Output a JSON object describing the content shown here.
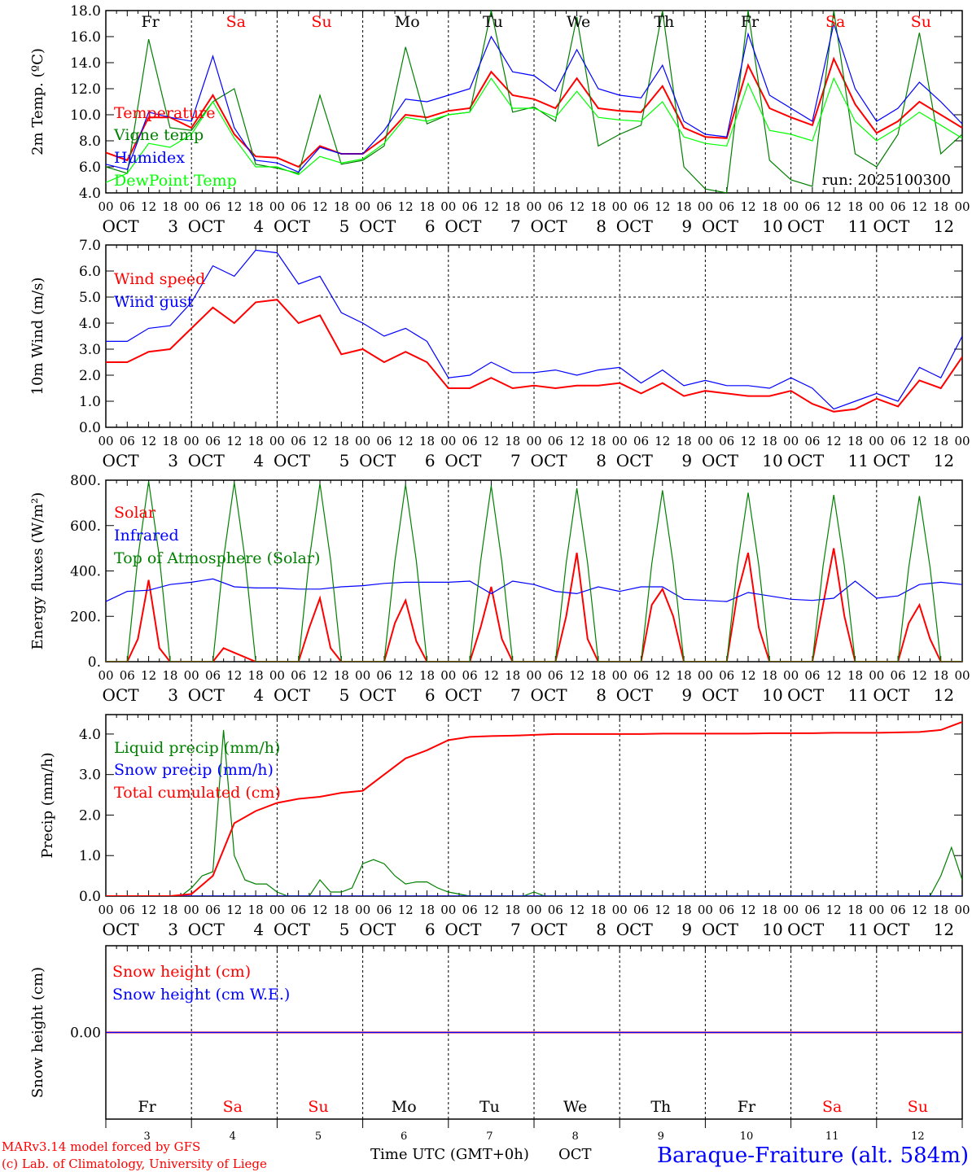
{
  "title": "Baraque-Fraiture (alt. 584m)",
  "footer": {
    "credit_line1": "MARv3.14 model forced by GFS",
    "credit_line2": "(c) Lab. of Climatology, University of Liege",
    "time_label": "Time UTC (GMT+0h)",
    "month_label": "OCT"
  },
  "run_label": "run: 2025100300",
  "xaxis": {
    "hour_labels": [
      "00",
      "06",
      "12",
      "18"
    ],
    "month": "OCT",
    "days": [
      "3",
      "4",
      "5",
      "6",
      "7",
      "8",
      "9",
      "10",
      "11",
      "12"
    ],
    "weekdays": [
      {
        "label": "Fr",
        "color": "#000000"
      },
      {
        "label": "Sa",
        "color": "#ff0000"
      },
      {
        "label": "Su",
        "color": "#ff0000"
      },
      {
        "label": "Mo",
        "color": "#000000"
      },
      {
        "label": "Tu",
        "color": "#000000"
      },
      {
        "label": "We",
        "color": "#000000"
      },
      {
        "label": "Th",
        "color": "#000000"
      },
      {
        "label": "Fr",
        "color": "#000000"
      },
      {
        "label": "Sa",
        "color": "#ff0000"
      },
      {
        "label": "Su",
        "color": "#ff0000"
      }
    ]
  },
  "chart_data": [
    {
      "type": "line",
      "ylabel": "2m Temp. (ºC)",
      "ylim": [
        4,
        18
      ],
      "yticks": [
        "4.0",
        "6.0",
        "8.0",
        "10.0",
        "12.0",
        "14.0",
        "16.0",
        "18.0"
      ],
      "x_step_hours": 6,
      "series": [
        {
          "name": "Temperature",
          "color": "#ff0000",
          "values": [
            7.1,
            6.5,
            9.8,
            9.8,
            9.0,
            11.5,
            8.5,
            6.8,
            6.7,
            6.0,
            7.6,
            7.0,
            7.0,
            8.2,
            10.0,
            9.8,
            10.3,
            10.5,
            13.3,
            11.5,
            11.2,
            10.5,
            12.8,
            10.5,
            10.3,
            10.2,
            12.2,
            9.0,
            8.3,
            8.2,
            13.8,
            10.5,
            9.8,
            9.2,
            14.3,
            10.8,
            8.6,
            9.5,
            11.0,
            10.0,
            9.0
          ]
        },
        {
          "name": "Vigne temp",
          "color": "#008000",
          "values": [
            6.0,
            5.5,
            15.8,
            9.0,
            8.8,
            11.0,
            12.0,
            6.2,
            5.9,
            5.5,
            11.5,
            6.2,
            6.5,
            7.6,
            15.2,
            9.3,
            10.0,
            10.2,
            18.0,
            10.2,
            10.6,
            9.5,
            17.5,
            7.6,
            8.5,
            9.2,
            18.0,
            6.0,
            4.3,
            4.0,
            18.0,
            6.5,
            5.0,
            4.5,
            18.0,
            7.0,
            6.0,
            8.5,
            16.3,
            7.0,
            8.5
          ]
        },
        {
          "name": "Humidex",
          "color": "#0000ff",
          "values": [
            6.2,
            5.8,
            10.2,
            9.8,
            9.5,
            14.5,
            9.0,
            6.5,
            6.3,
            5.6,
            7.5,
            7.0,
            7.0,
            8.8,
            11.2,
            11.0,
            11.5,
            12.0,
            16.0,
            13.3,
            13.0,
            11.8,
            15.0,
            12.0,
            11.5,
            11.3,
            13.8,
            9.5,
            8.5,
            8.3,
            16.2,
            11.5,
            10.5,
            9.5,
            17.0,
            12.0,
            9.5,
            10.5,
            12.5,
            11.0,
            9.3
          ]
        },
        {
          "name": "DewPoint Temp",
          "color": "#00ff00",
          "values": [
            4.8,
            5.5,
            7.8,
            7.5,
            8.5,
            11.0,
            8.2,
            6.0,
            6.0,
            5.4,
            6.8,
            6.3,
            6.6,
            7.8,
            9.8,
            9.5,
            10.0,
            10.2,
            12.8,
            10.5,
            10.5,
            9.8,
            11.8,
            9.8,
            9.6,
            9.5,
            11.0,
            8.3,
            7.8,
            7.6,
            12.4,
            8.8,
            8.5,
            8.0,
            12.8,
            9.5,
            8.0,
            9.0,
            10.2,
            9.2,
            8.2
          ]
        }
      ]
    },
    {
      "type": "line",
      "ylabel": "10m Wind (m/s)",
      "ylim": [
        0,
        7
      ],
      "yticks": [
        "0.0",
        "1.0",
        "2.0",
        "3.0",
        "4.0",
        "5.0",
        "6.0",
        "7.0"
      ],
      "reference_line": 5.0,
      "x_step_hours": 6,
      "series": [
        {
          "name": "Wind speed",
          "color": "#ff0000",
          "values": [
            2.5,
            2.5,
            2.9,
            3.0,
            3.8,
            4.6,
            4.0,
            4.8,
            4.9,
            4.0,
            4.3,
            2.8,
            3.0,
            2.5,
            2.9,
            2.5,
            1.5,
            1.5,
            1.9,
            1.5,
            1.6,
            1.5,
            1.6,
            1.6,
            1.7,
            1.3,
            1.7,
            1.2,
            1.4,
            1.3,
            1.2,
            1.2,
            1.4,
            0.9,
            0.6,
            0.7,
            1.1,
            0.8,
            1.8,
            1.5,
            2.7
          ]
        },
        {
          "name": "Wind gust",
          "color": "#0000ff",
          "values": [
            3.3,
            3.3,
            3.8,
            3.9,
            4.8,
            6.2,
            5.8,
            6.8,
            6.7,
            5.5,
            5.8,
            4.4,
            4.0,
            3.5,
            3.8,
            3.3,
            1.9,
            2.0,
            2.5,
            2.1,
            2.1,
            2.2,
            2.0,
            2.2,
            2.3,
            1.7,
            2.2,
            1.6,
            1.8,
            1.6,
            1.6,
            1.5,
            1.9,
            1.5,
            0.7,
            1.0,
            1.3,
            1.0,
            2.3,
            1.9,
            3.5
          ]
        }
      ]
    },
    {
      "type": "line",
      "ylabel": "Energy fluxes (W/m²)",
      "ylim": [
        0,
        800
      ],
      "yticks": [
        "0.",
        "200.",
        "400.",
        "600.",
        "800."
      ],
      "series": [
        {
          "name": "Solar",
          "color": "#ff0000",
          "x_step_hours": 3,
          "values": [
            0,
            0,
            0,
            100,
            360,
            60,
            0,
            0,
            0,
            0,
            0,
            60,
            40,
            20,
            0,
            0,
            0,
            0,
            0,
            150,
            280,
            60,
            0,
            0,
            0,
            0,
            0,
            170,
            270,
            90,
            0,
            0,
            0,
            0,
            0,
            150,
            330,
            100,
            0,
            0,
            0,
            0,
            0,
            200,
            480,
            100,
            0,
            0,
            0,
            0,
            0,
            250,
            320,
            200,
            0,
            0,
            0,
            0,
            0,
            300,
            480,
            150,
            0,
            0,
            0,
            0,
            0,
            250,
            500,
            200,
            0,
            0,
            0,
            0,
            0,
            170,
            250,
            100,
            0,
            0,
            0
          ]
        },
        {
          "name": "Infrared",
          "color": "#0000ff",
          "x_step_hours": 6,
          "values": [
            265,
            310,
            315,
            340,
            350,
            365,
            330,
            325,
            325,
            320,
            320,
            330,
            335,
            345,
            350,
            350,
            350,
            355,
            300,
            355,
            340,
            310,
            300,
            330,
            310,
            330,
            330,
            275,
            270,
            265,
            305,
            290,
            275,
            270,
            280,
            355,
            280,
            290,
            340,
            350,
            340
          ]
        },
        {
          "name": "Top of Atmosphere (Solar)",
          "color": "#008000",
          "x_step_hours": 3,
          "values": [
            0,
            0,
            0,
            460,
            795,
            460,
            0,
            0,
            0,
            0,
            0,
            455,
            790,
            455,
            0,
            0,
            0,
            0,
            0,
            450,
            785,
            450,
            0,
            0,
            0,
            0,
            0,
            445,
            780,
            445,
            0,
            0,
            0,
            0,
            0,
            440,
            775,
            440,
            0,
            0,
            0,
            0,
            0,
            435,
            765,
            435,
            0,
            0,
            0,
            0,
            0,
            430,
            755,
            430,
            0,
            0,
            0,
            0,
            0,
            425,
            745,
            425,
            0,
            0,
            0,
            0,
            0,
            420,
            735,
            420,
            0,
            0,
            0,
            0,
            0,
            415,
            730,
            415,
            0,
            0,
            0
          ]
        }
      ]
    },
    {
      "type": "line",
      "ylabel": "Precip (mm/h)",
      "ylim": [
        0,
        4.48
      ],
      "yticks": [
        "0.0",
        "1.0",
        "2.0",
        "3.0",
        "4.0"
      ],
      "series": [
        {
          "name": "Liquid precip (mm/h)",
          "color": "#008000",
          "x_step_hours": 3,
          "values": [
            0,
            0,
            0,
            0,
            0,
            0,
            0,
            0,
            0.2,
            0.5,
            0.6,
            4.1,
            1.0,
            0.4,
            0.3,
            0.3,
            0.1,
            0,
            0,
            0,
            0.4,
            0.1,
            0.1,
            0.2,
            0.8,
            0.9,
            0.8,
            0.5,
            0.3,
            0.35,
            0.35,
            0.2,
            0.1,
            0.05,
            0,
            0,
            0,
            0,
            0,
            0,
            0.1,
            0,
            0,
            0,
            0,
            0,
            0,
            0,
            0,
            0,
            0,
            0,
            0,
            0,
            0,
            0,
            0,
            0,
            0,
            0,
            0,
            0,
            0,
            0,
            0,
            0,
            0,
            0,
            0,
            0,
            0,
            0,
            0,
            0,
            0,
            0,
            0,
            0,
            0.5,
            1.2,
            0.4
          ]
        },
        {
          "name": "Snow precip (mm/h)",
          "color": "#0000ff",
          "x_step_hours": 6,
          "values": [
            0,
            0,
            0,
            0,
            0,
            0,
            0,
            0,
            0,
            0,
            0,
            0,
            0,
            0,
            0,
            0,
            0,
            0,
            0,
            0,
            0,
            0,
            0,
            0,
            0,
            0,
            0,
            0,
            0,
            0,
            0,
            0,
            0,
            0,
            0,
            0,
            0,
            0,
            0,
            0,
            0
          ]
        },
        {
          "name": "Total cumulated (cm)",
          "color": "#ff0000",
          "x_step_hours": 6,
          "values": [
            0,
            0,
            0,
            0,
            0.05,
            0.5,
            1.8,
            2.1,
            2.3,
            2.4,
            2.45,
            2.55,
            2.6,
            3.0,
            3.4,
            3.6,
            3.85,
            3.93,
            3.95,
            3.96,
            3.98,
            4.0,
            4.0,
            4.0,
            4.0,
            4.0,
            4.01,
            4.01,
            4.01,
            4.01,
            4.01,
            4.02,
            4.02,
            4.02,
            4.03,
            4.03,
            4.03,
            4.04,
            4.05,
            4.1,
            4.3
          ]
        }
      ]
    },
    {
      "type": "line",
      "ylabel": "Snow height (cm)",
      "ylim": [
        -1,
        1
      ],
      "yticks": [
        "0.00"
      ],
      "x_step_hours": 120,
      "series": [
        {
          "name": "Snow height (cm)",
          "color": "#ff0000",
          "values": [
            0,
            0,
            0
          ]
        },
        {
          "name": "Snow height (cm W.E.)",
          "color": "#0000ff",
          "values": [
            0,
            0,
            0
          ]
        }
      ]
    }
  ]
}
